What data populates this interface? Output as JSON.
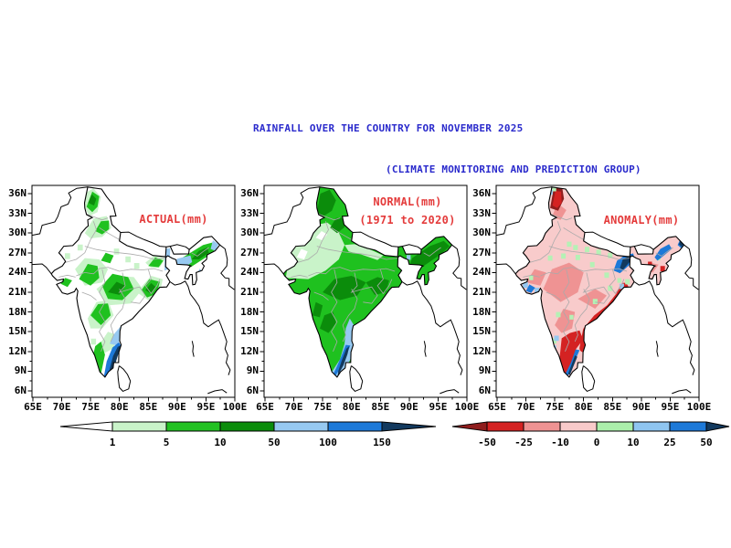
{
  "title": {
    "text": "RAINFALL OVER THE COUNTRY FOR NOVEMBER 2025",
    "color": "#2a2acc"
  },
  "subtitle": {
    "text": "(CLIMATE MONITORING AND PREDICTION GROUP)",
    "color": "#2a2acc"
  },
  "panels": [
    {
      "id": "actual",
      "label_lines": [
        "ACTUAL(mm)"
      ],
      "label_color": "#e43b3b"
    },
    {
      "id": "normal",
      "label_lines": [
        "NORMAL(mm)",
        "(1971 to 2020)"
      ],
      "label_color": "#e43b3b"
    },
    {
      "id": "anomaly",
      "label_lines": [
        "ANOMALY(mm)"
      ],
      "label_color": "#e43b3b"
    }
  ],
  "axes": {
    "lat_ticks": [
      "36N",
      "33N",
      "30N",
      "27N",
      "24N",
      "21N",
      "18N",
      "15N",
      "12N",
      "9N",
      "6N"
    ],
    "lon_ticks": [
      "65E",
      "70E",
      "75E",
      "80E",
      "85E",
      "90E",
      "95E",
      "100E"
    ]
  },
  "colorbars": {
    "rainfall": {
      "name": "rainfall-scale-mm",
      "boundary_labels": [
        "1",
        "5",
        "10",
        "50",
        "100",
        "150"
      ],
      "segment_colors": [
        "#c9f3c9",
        "#22c122",
        "#0b8c0b",
        "#97c9f1",
        "#1d79d8"
      ],
      "left_arrow_color": "#ffffff",
      "right_arrow_color": "#12395e"
    },
    "anomaly": {
      "name": "anomaly-scale-mm",
      "boundary_labels": [
        "-50",
        "-25",
        "-10",
        "0",
        "10",
        "25",
        "50"
      ],
      "segment_colors": [
        "#d42222",
        "#ef9393",
        "#f8caca",
        "#abefab",
        "#8fc5f0",
        "#1d79d8"
      ],
      "left_arrow_color": "#8f1d1d",
      "right_arrow_color": "#12395e"
    }
  },
  "palette": {
    "white": "#ffffff",
    "light_green": "#c9f3c9",
    "green": "#1fc11f",
    "dark_green": "#0b8c0b",
    "light_blue": "#97c9f1",
    "blue": "#1d79d8",
    "navy": "#12395e",
    "light_pink": "#f8cbcb",
    "pink": "#ef9393",
    "red": "#d42222",
    "dark_red": "#8f1d1d",
    "anomaly_green": "#b5f1b5",
    "state_border": "#aaaaaa",
    "country_border": "#000000"
  }
}
